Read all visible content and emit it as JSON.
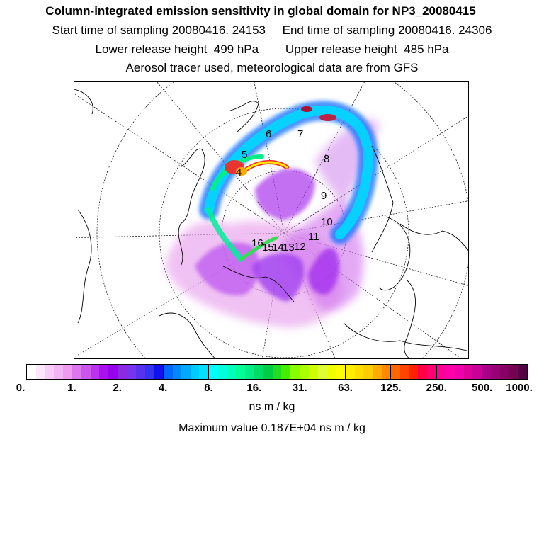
{
  "title": {
    "line1": "Column-integrated emission sensitivity in global domain for NP3_20080415",
    "line2": "Start time of sampling 20080416. 24153     End time of sampling 20080416. 24306",
    "line3": "Lower release height  499 hPa        Upper release height  485 hPa",
    "line4": "Aerosol tracer used, meteorological data are from GFS"
  },
  "map": {
    "projection": "polar-stereographic-north",
    "labels": [
      "4",
      "5",
      "6",
      "7",
      "8",
      "9",
      "10",
      "11",
      "12",
      "13",
      "14",
      "15",
      "16"
    ]
  },
  "colorbar": {
    "tick_labels": [
      "0.",
      "1.",
      "2.",
      "4.",
      "8.",
      "16.",
      "31.",
      "63.",
      "125.",
      "250.",
      "500.",
      "1000."
    ],
    "colors": [
      "#ffffff",
      "#fbe6fb",
      "#f7cdf7",
      "#f3b4f3",
      "#ef9bef",
      "#dd77ee",
      "#cc55ee",
      "#bb33ee",
      "#aa11ee",
      "#9900ee",
      "#8a2be2",
      "#7733ee",
      "#5533ee",
      "#3333ee",
      "#1111ee",
      "#0066ff",
      "#0088ff",
      "#00aaff",
      "#00ccff",
      "#00e0ff",
      "#00ffff",
      "#00ffdd",
      "#00ffbb",
      "#00ff99",
      "#00ee88",
      "#00dd66",
      "#00cc44",
      "#22dd22",
      "#44ee00",
      "#88ff00",
      "#aaff00",
      "#ccff00",
      "#ddff33",
      "#eeff00",
      "#ffff00",
      "#ffee00",
      "#ffdd00",
      "#ffcc00",
      "#ffaa00",
      "#ff8800",
      "#ff6600",
      "#ff4400",
      "#ff2200",
      "#ff0044",
      "#ff0077",
      "#ff0099",
      "#ff00aa",
      "#ee00aa",
      "#dd0099",
      "#cc0099",
      "#aa0088",
      "#990077",
      "#880066",
      "#770055",
      "#550044"
    ]
  },
  "unit": "ns m / kg",
  "maximum": "Maximum value  0.187E+04 ns m / kg"
}
